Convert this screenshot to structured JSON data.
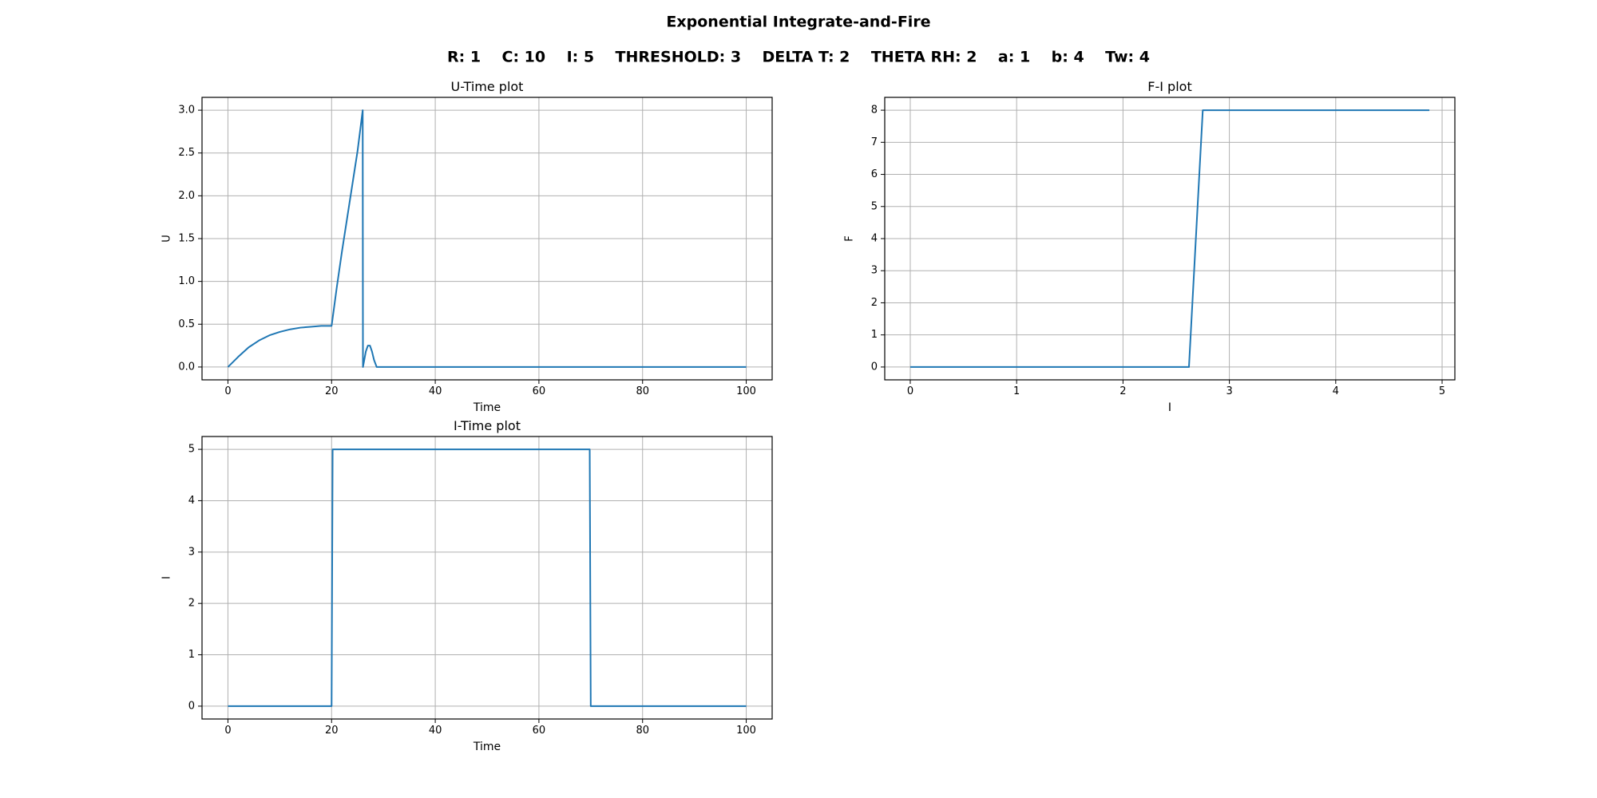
{
  "figure": {
    "title": "Exponential Integrate-and-Fire",
    "subtitle": "R: 1    C: 10    I: 5    THRESHOLD: 3    DELTA T: 2    THETA RH: 2    a: 1    b: 4    Tw: 4"
  },
  "colors": {
    "line": "#1f77b4",
    "grid": "#b0b0b0",
    "axes": "#000000",
    "background": "#ffffff"
  },
  "chart_data": [
    {
      "id": "u-time",
      "type": "line",
      "title": "U-Time plot",
      "xlabel": "Time",
      "ylabel": "U",
      "xlim": [
        -5,
        105
      ],
      "ylim": [
        -0.15,
        3.15
      ],
      "xticks": [
        0,
        20,
        40,
        60,
        80,
        100
      ],
      "xtick_labels": [
        "0",
        "20",
        "40",
        "60",
        "80",
        "100"
      ],
      "yticks": [
        0,
        0.5,
        1,
        1.5,
        2,
        2.5,
        3
      ],
      "ytick_labels": [
        "0.0",
        "0.5",
        "1.0",
        "1.5",
        "2.0",
        "2.5",
        "3.0"
      ],
      "grid": true,
      "series": [
        {
          "x": [
            0,
            2,
            4,
            6,
            8,
            10,
            12,
            14,
            16,
            18,
            20,
            21,
            22,
            23,
            24,
            25,
            26,
            26.05,
            26.3,
            26.6,
            27,
            27.4,
            27.8,
            28.2,
            28.7,
            29,
            40,
            60,
            80,
            100
          ],
          "y": [
            0,
            0.12,
            0.23,
            0.31,
            0.37,
            0.41,
            0.44,
            0.46,
            0.47,
            0.48,
            0.48,
            0.93,
            1.35,
            1.74,
            2.13,
            2.52,
            3.0,
            0,
            0.08,
            0.18,
            0.25,
            0.25,
            0.18,
            0.08,
            0,
            0,
            0,
            0,
            0,
            0
          ]
        }
      ]
    },
    {
      "id": "f-i",
      "type": "line",
      "title": "F-I plot",
      "xlabel": "I",
      "ylabel": "F",
      "xlim": [
        -0.24,
        5.12
      ],
      "ylim": [
        -0.4,
        8.4
      ],
      "xticks": [
        0,
        1,
        2,
        3,
        4,
        5
      ],
      "xtick_labels": [
        "0",
        "1",
        "2",
        "3",
        "4",
        "5"
      ],
      "yticks": [
        0,
        1,
        2,
        3,
        4,
        5,
        6,
        7,
        8
      ],
      "ytick_labels": [
        "0",
        "1",
        "2",
        "3",
        "4",
        "5",
        "6",
        "7",
        "8"
      ],
      "grid": true,
      "series": [
        {
          "x": [
            0,
            2.62,
            2.75,
            4.88
          ],
          "y": [
            0,
            0,
            8,
            8
          ]
        }
      ]
    },
    {
      "id": "i-time",
      "type": "line",
      "title": "I-Time plot",
      "xlabel": "Time",
      "ylabel": "I",
      "xlim": [
        -5,
        105
      ],
      "ylim": [
        -0.25,
        5.25
      ],
      "xticks": [
        0,
        20,
        40,
        60,
        80,
        100
      ],
      "xtick_labels": [
        "0",
        "20",
        "40",
        "60",
        "80",
        "100"
      ],
      "yticks": [
        0,
        1,
        2,
        3,
        4,
        5
      ],
      "ytick_labels": [
        "0",
        "1",
        "2",
        "3",
        "4",
        "5"
      ],
      "grid": true,
      "series": [
        {
          "x": [
            0,
            20,
            20.2,
            69.8,
            70,
            100
          ],
          "y": [
            0,
            0,
            5,
            5,
            0,
            0
          ]
        }
      ]
    }
  ]
}
